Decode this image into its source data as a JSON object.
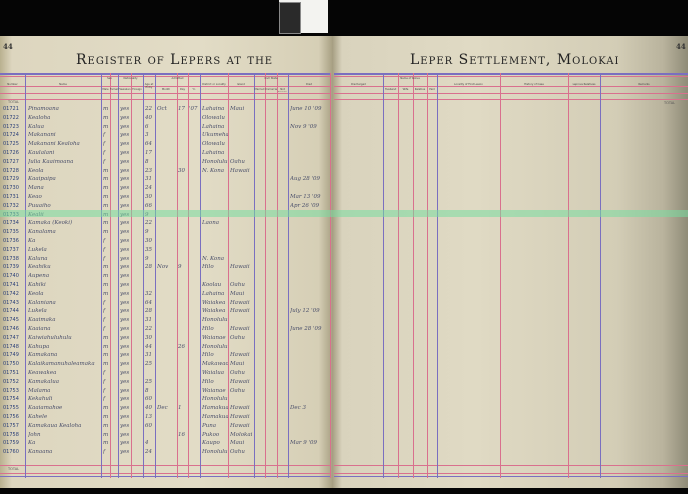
{
  "left_page": {
    "page_number": "44",
    "title": "Register of Lepers at the",
    "headers": [
      "Number",
      "Name",
      "Sex",
      "Nationality",
      "Age at Entry",
      "Admitted",
      "District or Locality",
      "Island",
      "Civil State",
      "Died"
    ],
    "subheaders": {
      "sex": [
        "Male",
        "Female"
      ],
      "nationality": [
        "Hawaiian",
        "Foreign"
      ],
      "admitted": [
        "Month",
        "Day",
        "Yr."
      ],
      "civil_state": [
        "Married",
        "Unmarried",
        "Not Known"
      ]
    },
    "total_label": "TOTAL"
  },
  "right_page": {
    "page_number": "44",
    "title": "Leper Settlement, Molokai",
    "headers": [
      "Discharged",
      "Name of Kokua",
      "Locality of First Lesion",
      "History of Case",
      "Leprous Relatives",
      "Remarks"
    ],
    "kokua_subheaders": [
      "Husband",
      "Wife",
      "Relative",
      "Paid"
    ],
    "total_label": "TOTAL"
  },
  "rows": [
    {
      "number": "01721",
      "name": "Pinamoana",
      "sex": "m",
      "nat": "yes",
      "age": "22",
      "month": "Oct",
      "day": "17",
      "yr": "'07",
      "district": "Lahaina",
      "island": "Maui",
      "died": "June 10 '09"
    },
    {
      "number": "01722",
      "name": "Kealoha",
      "sex": "m",
      "nat": "yes",
      "age": "40",
      "month": "",
      "day": "",
      "yr": "",
      "district": "Olowalu",
      "island": "",
      "died": ""
    },
    {
      "number": "01723",
      "name": "Kalua",
      "sex": "m",
      "nat": "yes",
      "age": "6",
      "month": "",
      "day": "",
      "yr": "",
      "district": "Lahaina",
      "island": "",
      "died": "Nov 9 '09"
    },
    {
      "number": "01724",
      "name": "Makanani",
      "sex": "f",
      "nat": "yes",
      "age": "3",
      "month": "",
      "day": "",
      "yr": "",
      "district": "Ukumehame",
      "island": "",
      "died": ""
    },
    {
      "number": "01725",
      "name": "Makanani Kealoha",
      "sex": "f",
      "nat": "yes",
      "age": "64",
      "month": "",
      "day": "",
      "yr": "",
      "district": "Olowalu",
      "island": "",
      "died": ""
    },
    {
      "number": "01726",
      "name": "Kaulalani",
      "sex": "f",
      "nat": "yes",
      "age": "17",
      "month": "",
      "day": "",
      "yr": "",
      "district": "Lahaina",
      "island": "",
      "died": ""
    },
    {
      "number": "01727",
      "name": "Julia Kaaimoana",
      "sex": "f",
      "nat": "yes",
      "age": "8",
      "month": "",
      "day": "",
      "yr": "",
      "district": "Honolulu",
      "island": "Oahu",
      "died": ""
    },
    {
      "number": "01728",
      "name": "Keola",
      "sex": "m",
      "nat": "yes",
      "age": "23",
      "month": "",
      "day": "30",
      "yr": "",
      "district": "N. Kona",
      "island": "Hawaii",
      "died": ""
    },
    {
      "number": "01729",
      "name": "Kaaipaipa",
      "sex": "m",
      "nat": "yes",
      "age": "31",
      "month": "",
      "day": "",
      "yr": "",
      "district": "",
      "island": "",
      "died": "Aug 28 '09"
    },
    {
      "number": "01730",
      "name": "Mana",
      "sex": "m",
      "nat": "yes",
      "age": "24",
      "month": "",
      "day": "",
      "yr": "",
      "district": "",
      "island": "",
      "died": ""
    },
    {
      "number": "01731",
      "name": "Keao",
      "sex": "m",
      "nat": "yes",
      "age": "30",
      "month": "",
      "day": "",
      "yr": "",
      "district": "",
      "island": "",
      "died": "Mar 13 '09"
    },
    {
      "number": "01732",
      "name": "Puuaiho",
      "sex": "m",
      "nat": "yes",
      "age": "66",
      "month": "",
      "day": "",
      "yr": "",
      "district": "",
      "island": "",
      "died": "Apr 26 '09"
    },
    {
      "number": "01733",
      "name": "Kealii",
      "sex": "m",
      "nat": "yes",
      "age": "9",
      "month": "",
      "day": "",
      "yr": "",
      "district": "",
      "island": "",
      "died": ""
    },
    {
      "number": "01734",
      "name": "Kamaka (Keoki)",
      "sex": "m",
      "nat": "yes",
      "age": "22",
      "month": "",
      "day": "",
      "yr": "",
      "district": "Laona",
      "island": "",
      "died": ""
    },
    {
      "number": "01735",
      "name": "Kanalama",
      "sex": "m",
      "nat": "yes",
      "age": "9",
      "month": "",
      "day": "",
      "yr": "",
      "district": "",
      "island": "",
      "died": ""
    },
    {
      "number": "01736",
      "name": "Ka",
      "sex": "f",
      "nat": "yes",
      "age": "30",
      "month": "",
      "day": "",
      "yr": "",
      "district": "",
      "island": "",
      "died": ""
    },
    {
      "number": "01737",
      "name": "Lukela",
      "sex": "f",
      "nat": "yes",
      "age": "35",
      "month": "",
      "day": "",
      "yr": "",
      "district": "",
      "island": "",
      "died": ""
    },
    {
      "number": "01738",
      "name": "Kaluna",
      "sex": "f",
      "nat": "yes",
      "age": "9",
      "month": "",
      "day": "",
      "yr": "",
      "district": "N. Kona",
      "island": "",
      "died": ""
    },
    {
      "number": "01739",
      "name": "Keahiku",
      "sex": "m",
      "nat": "yes",
      "age": "28",
      "month": "Nov",
      "day": "9",
      "yr": "",
      "district": "Hilo",
      "island": "Hawaii",
      "died": ""
    },
    {
      "number": "01740",
      "name": "Aupena",
      "sex": "m",
      "nat": "yes",
      "age": "",
      "month": "",
      "day": "",
      "yr": "",
      "district": "",
      "island": "",
      "died": ""
    },
    {
      "number": "01741",
      "name": "Kahiki",
      "sex": "m",
      "nat": "yes",
      "age": "",
      "month": "",
      "day": "",
      "yr": "",
      "district": "Koolau",
      "island": "Oahu",
      "died": ""
    },
    {
      "number": "01742",
      "name": "Keola",
      "sex": "m",
      "nat": "yes",
      "age": "32",
      "month": "",
      "day": "",
      "yr": "",
      "district": "Lahaina",
      "island": "Maui",
      "died": ""
    },
    {
      "number": "01743",
      "name": "Kalaniana",
      "sex": "f",
      "nat": "yes",
      "age": "64",
      "month": "",
      "day": "",
      "yr": "",
      "district": "Waiakea",
      "island": "Hawaii",
      "died": ""
    },
    {
      "number": "01744",
      "name": "Lukela",
      "sex": "f",
      "nat": "yes",
      "age": "28",
      "month": "",
      "day": "",
      "yr": "",
      "district": "Waiakea",
      "island": "Hawaii",
      "died": "July 12 '09"
    },
    {
      "number": "01745",
      "name": "Kaaimaka",
      "sex": "f",
      "nat": "yes",
      "age": "31",
      "month": "",
      "day": "",
      "yr": "",
      "district": "Honolulu",
      "island": "",
      "died": ""
    },
    {
      "number": "01746",
      "name": "Kaaiana",
      "sex": "f",
      "nat": "yes",
      "age": "22",
      "month": "",
      "day": "",
      "yr": "",
      "district": "Hilo",
      "island": "Hawaii",
      "died": "June 28 '09"
    },
    {
      "number": "01747",
      "name": "Kaiwiahuluhulu",
      "sex": "m",
      "nat": "yes",
      "age": "30",
      "month": "",
      "day": "",
      "yr": "",
      "district": "Waianae",
      "island": "Oahu",
      "died": ""
    },
    {
      "number": "01748",
      "name": "Kahupa",
      "sex": "m",
      "nat": "yes",
      "age": "44",
      "month": "",
      "day": "26",
      "yr": "",
      "district": "Honolulu",
      "island": "",
      "died": ""
    },
    {
      "number": "01749",
      "name": "Kamakana",
      "sex": "m",
      "nat": "yes",
      "age": "31",
      "month": "",
      "day": "",
      "yr": "",
      "district": "Hilo",
      "island": "Hawaii",
      "died": ""
    },
    {
      "number": "01750",
      "name": "Kalaikamanuhaleamaka",
      "sex": "m",
      "nat": "yes",
      "age": "25",
      "month": "",
      "day": "",
      "yr": "",
      "district": "Makawao",
      "island": "Maui",
      "died": ""
    },
    {
      "number": "01751",
      "name": "Keawakea",
      "sex": "f",
      "nat": "yes",
      "age": "",
      "month": "",
      "day": "",
      "yr": "",
      "district": "Waialua",
      "island": "Oahu",
      "died": ""
    },
    {
      "number": "01752",
      "name": "Kamakalua",
      "sex": "f",
      "nat": "yes",
      "age": "25",
      "month": "",
      "day": "",
      "yr": "",
      "district": "Hilo",
      "island": "Hawaii",
      "died": ""
    },
    {
      "number": "01753",
      "name": "Malama",
      "sex": "f",
      "nat": "yes",
      "age": "8",
      "month": "",
      "day": "",
      "yr": "",
      "district": "Waianae",
      "island": "Oahu",
      "died": ""
    },
    {
      "number": "01754",
      "name": "Kekahuli",
      "sex": "f",
      "nat": "yes",
      "age": "60",
      "month": "",
      "day": "",
      "yr": "",
      "district": "Honolulu",
      "island": "",
      "died": ""
    },
    {
      "number": "01755",
      "name": "Kaaiamahoe",
      "sex": "m",
      "nat": "yes",
      "age": "40",
      "month": "Dec",
      "day": "1",
      "yr": "",
      "district": "Hamakua",
      "island": "Hawaii",
      "died": "Dec 3"
    },
    {
      "number": "01756",
      "name": "Kahele",
      "sex": "m",
      "nat": "yes",
      "age": "13",
      "month": "",
      "day": "",
      "yr": "",
      "district": "Hamakua",
      "island": "Hawaii",
      "died": ""
    },
    {
      "number": "01757",
      "name": "Kamakaua Kealoha",
      "sex": "m",
      "nat": "yes",
      "age": "60",
      "month": "",
      "day": "",
      "yr": "",
      "district": "Puna",
      "island": "Hawaii",
      "died": ""
    },
    {
      "number": "01758",
      "name": "John",
      "sex": "m",
      "nat": "yes",
      "age": "",
      "month": "",
      "day": "16",
      "yr": "",
      "district": "Pukoo",
      "island": "Molokai",
      "died": ""
    },
    {
      "number": "01759",
      "name": "Ka",
      "sex": "m",
      "nat": "yes",
      "age": "4",
      "month": "",
      "day": "",
      "yr": "",
      "district": "Kaupo",
      "island": "Maui",
      "died": "Mar 9 '09"
    },
    {
      "number": "01760",
      "name": "Kanaana",
      "sex": "f",
      "nat": "yes",
      "age": "24",
      "month": "",
      "day": "",
      "yr": "",
      "district": "Honolulu",
      "island": "Oahu",
      "died": ""
    }
  ],
  "colors": {
    "ruling_purple": "#7a6fc0",
    "ruling_red": "#d9708e",
    "paper": "#e0dac4",
    "scan_band": "#78dca0"
  }
}
